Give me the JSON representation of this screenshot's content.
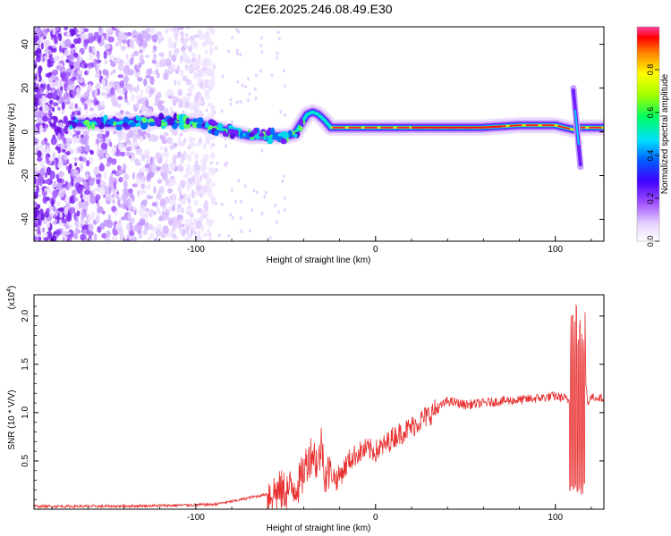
{
  "title": "C2E6.2025.246.08.49.E30",
  "chart_data": [
    {
      "type": "heatmap",
      "name": "spectrogram",
      "xlabel": "Height of straight line (km)",
      "ylabel": "Frequency (Hz)",
      "xlim": [
        -190,
        127
      ],
      "ylim": [
        -50,
        48
      ],
      "x_ticks": [
        -100,
        0,
        100
      ],
      "x_tick_labels": [
        "-100",
        "0",
        "100"
      ],
      "y_ticks": [
        -40,
        -20,
        0,
        20,
        40
      ],
      "y_tick_labels": [
        "-40",
        "-20",
        "0",
        "20",
        "40"
      ],
      "colorbar": {
        "label": "Normalized spectral amplitude",
        "range": [
          0,
          1
        ],
        "ticks": [
          0,
          0.2,
          0.4,
          0.6,
          0.8
        ],
        "tick_labels": [
          "0.0",
          "0.2",
          "0.4",
          "0.6",
          "0.8"
        ]
      },
      "ridge_track": {
        "description": "dominant frequency ridge (Hz) vs height (km)",
        "x": [
          -190,
          -160,
          -140,
          -130,
          -115,
          -100,
          -90,
          -80,
          -70,
          -60,
          -50,
          -45,
          -42,
          -38,
          -35,
          -32,
          -28,
          -25,
          -20,
          0,
          20,
          40,
          60,
          80,
          100,
          105,
          110,
          112,
          115,
          120,
          127
        ],
        "y": [
          4,
          4,
          4,
          5,
          5,
          4,
          2,
          0,
          -2,
          -2,
          -2,
          -1,
          3,
          8,
          9,
          8,
          5,
          2,
          2,
          2,
          2,
          2,
          2,
          3,
          3,
          2,
          1,
          2,
          2,
          2,
          2
        ]
      }
    },
    {
      "type": "line",
      "name": "snr",
      "xlabel": "Height of straight line (km)",
      "ylabel": "SNR (10 * V/V)",
      "multiplier": "(x10",
      "multiplier_exp": "4",
      "multiplier_close": ")",
      "xlim": [
        -190,
        127
      ],
      "ylim": [
        0,
        2.22
      ],
      "x_ticks": [
        -100,
        0,
        100
      ],
      "x_tick_labels": [
        "-100",
        "0",
        "100"
      ],
      "y_ticks": [
        0.5,
        1.0,
        1.5,
        2.0
      ],
      "y_tick_labels": [
        "0.5",
        "1.0",
        "1.5",
        "2.0"
      ],
      "color": "#e83030",
      "series": [
        {
          "name": "SNR",
          "x": [
            -190,
            -150,
            -110,
            -90,
            -80,
            -70,
            -62,
            -55,
            -48,
            -42,
            -38,
            -35,
            -32,
            -30,
            -28,
            -25,
            -22,
            -18,
            -15,
            -10,
            -5,
            0,
            5,
            10,
            15,
            20,
            25,
            30,
            35,
            40,
            50,
            60,
            70,
            80,
            90,
            100,
            105,
            108,
            110,
            111,
            112,
            113,
            114,
            115,
            116,
            118,
            120,
            127
          ],
          "y": [
            0.03,
            0.03,
            0.04,
            0.05,
            0.08,
            0.12,
            0.15,
            0.18,
            0.2,
            0.28,
            0.5,
            0.6,
            0.45,
            0.7,
            0.35,
            0.4,
            0.3,
            0.4,
            0.5,
            0.58,
            0.62,
            0.6,
            0.66,
            0.75,
            0.8,
            0.85,
            0.92,
            0.98,
            1.05,
            1.12,
            1.08,
            1.1,
            1.12,
            1.13,
            1.15,
            1.17,
            1.15,
            1.12,
            1.8,
            0.15,
            2.1,
            0.2,
            1.9,
            0.12,
            1.5,
            1.1,
            1.16,
            1.15
          ]
        }
      ]
    }
  ]
}
